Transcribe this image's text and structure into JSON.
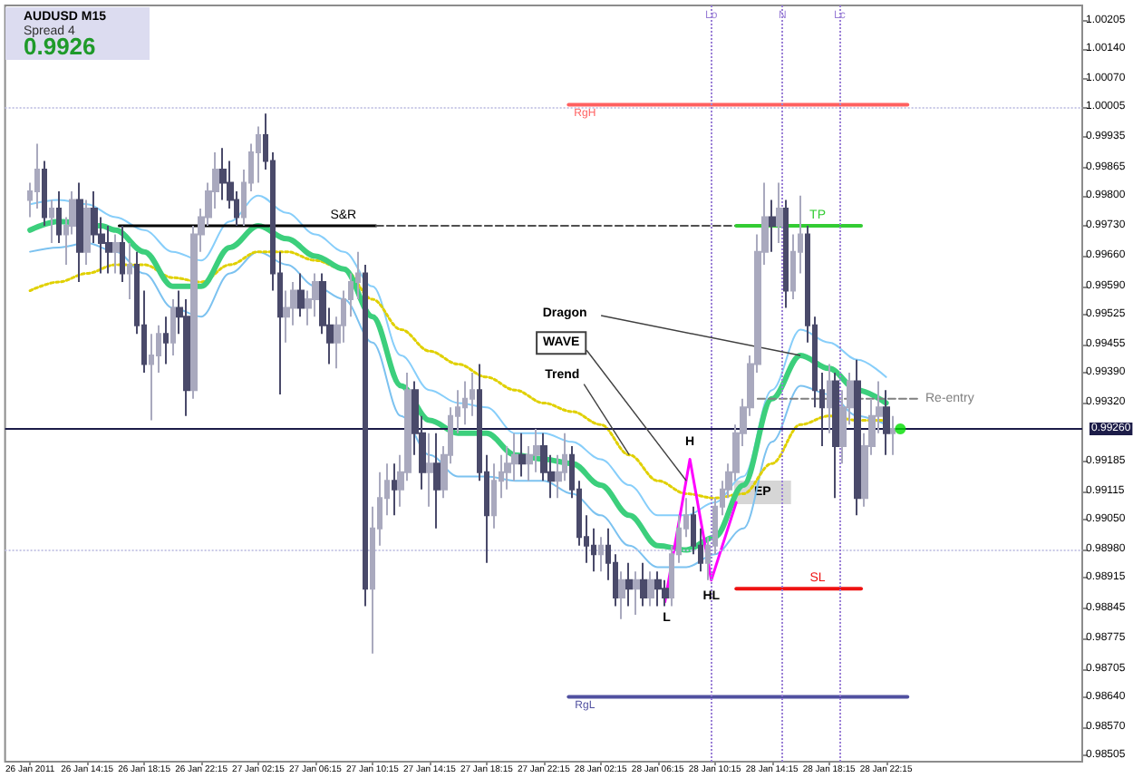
{
  "chart_data": {
    "type": "candlestick",
    "title": "AUDUSD M15",
    "subtitle": "Spread 4",
    "x": [
      "2011-01-26T10:15",
      "2011-01-26T10:45",
      "2011-01-26T11:15",
      "2011-01-26T11:45",
      "2011-01-26T12:15",
      "2011-01-26T12:45",
      "2011-01-26T13:15",
      "2011-01-26T13:45",
      "2011-01-26T14:15",
      "2011-01-26T14:45",
      "2011-01-26T15:15",
      "2011-01-26T15:45",
      "2011-01-26T16:15",
      "2011-01-26T16:45",
      "2011-01-26T17:15",
      "2011-01-26T17:45",
      "2011-01-26T18:15",
      "2011-01-26T18:45",
      "2011-01-26T19:15",
      "2011-01-26T19:45",
      "2011-01-26T20:15",
      "2011-01-26T20:45",
      "2011-01-26T21:15",
      "2011-01-26T21:45",
      "2011-01-26T22:15",
      "2011-01-26T22:45",
      "2011-01-26T23:15",
      "2011-01-26T23:45",
      "2011-01-27T00:15",
      "2011-01-27T00:45",
      "2011-01-27T01:15",
      "2011-01-27T01:45",
      "2011-01-27T02:15",
      "2011-01-27T02:45",
      "2011-01-27T03:15",
      "2011-01-27T03:45",
      "2011-01-27T04:15",
      "2011-01-27T04:45",
      "2011-01-27T05:15",
      "2011-01-27T05:45",
      "2011-01-27T06:15",
      "2011-01-27T06:45",
      "2011-01-27T07:15",
      "2011-01-27T07:45",
      "2011-01-27T08:15",
      "2011-01-27T08:45",
      "2011-01-27T09:15",
      "2011-01-27T09:45",
      "2011-01-27T10:15",
      "2011-01-27T10:45",
      "2011-01-27T11:15",
      "2011-01-27T11:45",
      "2011-01-27T12:15",
      "2011-01-27T12:45",
      "2011-01-27T13:15",
      "2011-01-27T13:45",
      "2011-01-27T14:15",
      "2011-01-27T14:45",
      "2011-01-27T15:15",
      "2011-01-27T15:45",
      "2011-01-27T16:15",
      "2011-01-27T16:45",
      "2011-01-27T17:15",
      "2011-01-27T17:45",
      "2011-01-27T18:15",
      "2011-01-27T18:45",
      "2011-01-27T19:15",
      "2011-01-27T19:45",
      "2011-01-27T20:15",
      "2011-01-27T20:45",
      "2011-01-27T21:15",
      "2011-01-27T21:45",
      "2011-01-27T22:15",
      "2011-01-27T22:45",
      "2011-01-27T23:15",
      "2011-01-27T23:45",
      "2011-01-28T00:15",
      "2011-01-28T00:45",
      "2011-01-28T01:15",
      "2011-01-28T01:45",
      "2011-01-28T02:15",
      "2011-01-28T02:45",
      "2011-01-28T03:15",
      "2011-01-28T03:45",
      "2011-01-28T04:15",
      "2011-01-28T04:45",
      "2011-01-28T05:15",
      "2011-01-28T05:45",
      "2011-01-28T06:15",
      "2011-01-28T06:45",
      "2011-01-28T07:15",
      "2011-01-28T07:45",
      "2011-01-28T08:15",
      "2011-01-28T08:45",
      "2011-01-28T09:15",
      "2011-01-28T09:45",
      "2011-01-28T10:15",
      "2011-01-28T10:45",
      "2011-01-28T11:15",
      "2011-01-28T11:45",
      "2011-01-28T12:15",
      "2011-01-28T12:45",
      "2011-01-28T13:15",
      "2011-01-28T13:45",
      "2011-01-28T14:15",
      "2011-01-28T14:45",
      "2011-01-28T15:15",
      "2011-01-28T15:45",
      "2011-01-28T16:15",
      "2011-01-28T16:45",
      "2011-01-28T17:15",
      "2011-01-28T17:45",
      "2011-01-28T18:15",
      "2011-01-28T18:45",
      "2011-01-28T19:15",
      "2011-01-28T19:45",
      "2011-01-28T20:15",
      "2011-01-28T20:45",
      "2011-01-28T21:15",
      "2011-01-28T21:45",
      "2011-01-28T22:15",
      "2011-01-28T22:45"
    ],
    "ohlc": [
      [
        0.9979,
        0.9983,
        0.9975,
        0.9981
      ],
      [
        0.9981,
        0.9992,
        0.9977,
        0.9986
      ],
      [
        0.9986,
        0.9988,
        0.9973,
        0.9975
      ],
      [
        0.9975,
        0.9979,
        0.9969,
        0.9977
      ],
      [
        0.9977,
        0.9981,
        0.9969,
        0.9971
      ],
      [
        0.9971,
        0.9975,
        0.9964,
        0.9973
      ],
      [
        0.9973,
        0.9981,
        0.9971,
        0.9979
      ],
      [
        0.9979,
        0.9983,
        0.996,
        0.9967
      ],
      [
        0.9967,
        0.9979,
        0.9964,
        0.9977
      ],
      [
        0.9977,
        0.9981,
        0.9969,
        0.9971
      ],
      [
        0.9971,
        0.9975,
        0.9962,
        0.9969
      ],
      [
        0.9969,
        0.9973,
        0.9962,
        0.9967
      ],
      [
        0.9967,
        0.9971,
        0.9962,
        0.9969
      ],
      [
        0.9969,
        0.9973,
        0.996,
        0.9962
      ],
      [
        0.9962,
        0.9969,
        0.9956,
        0.9964
      ],
      [
        0.9964,
        0.9967,
        0.9948,
        0.995
      ],
      [
        0.995,
        0.9958,
        0.9939,
        0.9941
      ],
      [
        0.9941,
        0.9948,
        0.9928,
        0.9943
      ],
      [
        0.9943,
        0.995,
        0.9939,
        0.9948
      ],
      [
        0.9948,
        0.9952,
        0.9941,
        0.9946
      ],
      [
        0.9946,
        0.9956,
        0.9943,
        0.9954
      ],
      [
        0.9954,
        0.9958,
        0.9948,
        0.9952
      ],
      [
        0.9952,
        0.9956,
        0.9929,
        0.9935
      ],
      [
        0.9935,
        0.9973,
        0.9933,
        0.9971
      ],
      [
        0.9971,
        0.9977,
        0.9967,
        0.9975
      ],
      [
        0.9975,
        0.9983,
        0.9973,
        0.9981
      ],
      [
        0.9981,
        0.999,
        0.9977,
        0.9986
      ],
      [
        0.9986,
        0.9991,
        0.9979,
        0.9983
      ],
      [
        0.9983,
        0.9988,
        0.9977,
        0.9979
      ],
      [
        0.9979,
        0.9981,
        0.9973,
        0.9975
      ],
      [
        0.9975,
        0.9986,
        0.9973,
        0.9983
      ],
      [
        0.9983,
        0.9992,
        0.9981,
        0.999
      ],
      [
        0.999,
        0.9996,
        0.9983,
        0.9994
      ],
      [
        0.9994,
        0.9999,
        0.9986,
        0.9988
      ],
      [
        0.9988,
        0.999,
        0.9958,
        0.9962
      ],
      [
        0.9962,
        0.9967,
        0.9934,
        0.9952
      ],
      [
        0.9952,
        0.9958,
        0.9946,
        0.9954
      ],
      [
        0.9954,
        0.996,
        0.995,
        0.9958
      ],
      [
        0.9958,
        0.9962,
        0.9952,
        0.9954
      ],
      [
        0.9954,
        0.9958,
        0.995,
        0.9956
      ],
      [
        0.9956,
        0.9962,
        0.9952,
        0.996
      ],
      [
        0.996,
        0.9962,
        0.9948,
        0.995
      ],
      [
        0.995,
        0.9954,
        0.9941,
        0.9946
      ],
      [
        0.9946,
        0.9952,
        0.994,
        0.995
      ],
      [
        0.995,
        0.9958,
        0.9946,
        0.9956
      ],
      [
        0.9956,
        0.9962,
        0.9952,
        0.996
      ],
      [
        0.996,
        0.9967,
        0.9956,
        0.9962
      ],
      [
        0.9962,
        0.9964,
        0.9885,
        0.9889
      ],
      [
        0.9889,
        0.9908,
        0.9874,
        0.9903
      ],
      [
        0.9903,
        0.9916,
        0.9899,
        0.991
      ],
      [
        0.991,
        0.9918,
        0.9906,
        0.9914
      ],
      [
        0.9914,
        0.9918,
        0.9906,
        0.9912
      ],
      [
        0.9912,
        0.992,
        0.9908,
        0.9916
      ],
      [
        0.9916,
        0.9939,
        0.9914,
        0.9935
      ],
      [
        0.9935,
        0.9937,
        0.992,
        0.9925
      ],
      [
        0.9925,
        0.9929,
        0.9912,
        0.9916
      ],
      [
        0.9916,
        0.9925,
        0.9908,
        0.9918
      ],
      [
        0.9918,
        0.9925,
        0.9903,
        0.9912
      ],
      [
        0.9912,
        0.9922,
        0.991,
        0.992
      ],
      [
        0.992,
        0.9931,
        0.9918,
        0.9929
      ],
      [
        0.9929,
        0.9935,
        0.9925,
        0.9931
      ],
      [
        0.9931,
        0.9937,
        0.9927,
        0.9933
      ],
      [
        0.9933,
        0.9939,
        0.9929,
        0.9935
      ],
      [
        0.9935,
        0.9941,
        0.9914,
        0.9916
      ],
      [
        0.9916,
        0.992,
        0.9895,
        0.9906
      ],
      [
        0.9906,
        0.9918,
        0.9903,
        0.9914
      ],
      [
        0.9914,
        0.992,
        0.991,
        0.9916
      ],
      [
        0.9916,
        0.9922,
        0.9912,
        0.9918
      ],
      [
        0.9918,
        0.9925,
        0.9914,
        0.992
      ],
      [
        0.992,
        0.9925,
        0.9915,
        0.9918
      ],
      [
        0.9918,
        0.9922,
        0.9914,
        0.992
      ],
      [
        0.992,
        0.9926,
        0.9916,
        0.9922
      ],
      [
        0.9922,
        0.9925,
        0.9914,
        0.9916
      ],
      [
        0.9916,
        0.992,
        0.991,
        0.9914
      ],
      [
        0.9914,
        0.992,
        0.991,
        0.9916
      ],
      [
        0.9916,
        0.9925,
        0.9914,
        0.992
      ],
      [
        0.992,
        0.9922,
        0.991,
        0.9912
      ],
      [
        0.9912,
        0.9914,
        0.9899,
        0.9901
      ],
      [
        0.9901,
        0.9906,
        0.9895,
        0.9899
      ],
      [
        0.9899,
        0.9903,
        0.9893,
        0.9897
      ],
      [
        0.9897,
        0.9901,
        0.9893,
        0.9899
      ],
      [
        0.9899,
        0.9903,
        0.9891,
        0.9895
      ],
      [
        0.9895,
        0.9897,
        0.9885,
        0.9887
      ],
      [
        0.9887,
        0.9893,
        0.9882,
        0.9891
      ],
      [
        0.9891,
        0.9895,
        0.9885,
        0.9889
      ],
      [
        0.9889,
        0.9893,
        0.9883,
        0.9891
      ],
      [
        0.9891,
        0.9895,
        0.9885,
        0.9887
      ],
      [
        0.9887,
        0.9893,
        0.9885,
        0.9891
      ],
      [
        0.9891,
        0.9893,
        0.9885,
        0.9889
      ],
      [
        0.9889,
        0.9891,
        0.9885,
        0.9887
      ],
      [
        0.9887,
        0.9899,
        0.9885,
        0.9897
      ],
      [
        0.9897,
        0.9906,
        0.9895,
        0.9903
      ],
      [
        0.9903,
        0.991,
        0.9901,
        0.9906
      ],
      [
        0.9906,
        0.9908,
        0.9897,
        0.9899
      ],
      [
        0.9899,
        0.9903,
        0.9893,
        0.9895
      ],
      [
        0.9895,
        0.9901,
        0.9891,
        0.9899
      ],
      [
        0.9899,
        0.991,
        0.9897,
        0.9908
      ],
      [
        0.9908,
        0.9914,
        0.9906,
        0.9912
      ],
      [
        0.9912,
        0.9918,
        0.991,
        0.9916
      ],
      [
        0.9916,
        0.9927,
        0.9914,
        0.9925
      ],
      [
        0.9925,
        0.9933,
        0.9922,
        0.9931
      ],
      [
        0.9931,
        0.9943,
        0.9929,
        0.9941
      ],
      [
        0.9941,
        0.9971,
        0.9939,
        0.9967
      ],
      [
        0.9967,
        0.9983,
        0.9964,
        0.9975
      ],
      [
        0.9975,
        0.9979,
        0.9967,
        0.9973
      ],
      [
        0.9973,
        0.9983,
        0.9969,
        0.9977
      ],
      [
        0.9977,
        0.9979,
        0.9954,
        0.9958
      ],
      [
        0.9958,
        0.9971,
        0.9956,
        0.9967
      ],
      [
        0.9967,
        0.998,
        0.9962,
        0.9971
      ],
      [
        0.9971,
        0.9973,
        0.9946,
        0.995
      ],
      [
        0.995,
        0.9952,
        0.9931,
        0.9935
      ],
      [
        0.9935,
        0.9939,
        0.9922,
        0.9931
      ],
      [
        0.9931,
        0.9941,
        0.9925,
        0.9937
      ],
      [
        0.9937,
        0.9939,
        0.991,
        0.9922
      ],
      [
        0.9922,
        0.9935,
        0.9918,
        0.9931
      ],
      [
        0.9931,
        0.9939,
        0.9927,
        0.9937
      ],
      [
        0.9937,
        0.9942,
        0.9906,
        0.991
      ],
      [
        0.991,
        0.9925,
        0.9908,
        0.9922
      ],
      [
        0.9922,
        0.9933,
        0.992,
        0.9929
      ],
      [
        0.9929,
        0.9937,
        0.9925,
        0.9931
      ],
      [
        0.9931,
        0.9935,
        0.992,
        0.9925
      ],
      [
        0.9925,
        0.9929,
        0.992,
        0.9926
      ]
    ],
    "colors": [
      "#a9a9be",
      "#a9a9be",
      "#4a4a6a",
      "#a9a9be",
      "#4a4a6a",
      "#a9a9be",
      "#a9a9be",
      "#4a4a6a",
      "#a9a9be",
      "#4a4a6a",
      "#4a4a6a",
      "#4a4a6a",
      "#a9a9be",
      "#4a4a6a",
      "#a9a9be",
      "#4a4a6a",
      "#4a4a6a",
      "#a9a9be",
      "#a9a9be",
      "#4a4a6a",
      "#a9a9be",
      "#4a4a6a",
      "#4a4a6a",
      "#a9a9be",
      "#a9a9be",
      "#a9a9be",
      "#a9a9be",
      "#4a4a6a",
      "#4a4a6a",
      "#4a4a6a",
      "#a9a9be",
      "#a9a9be",
      "#a9a9be",
      "#4a4a6a",
      "#4a4a6a",
      "#4a4a6a",
      "#a9a9be",
      "#a9a9be",
      "#4a4a6a",
      "#a9a9be",
      "#a9a9be",
      "#4a4a6a",
      "#4a4a6a",
      "#a9a9be",
      "#a9a9be",
      "#a9a9be",
      "#a9a9be",
      "#4a4a6a",
      "#a9a9be",
      "#a9a9be",
      "#a9a9be",
      "#4a4a6a",
      "#a9a9be",
      "#a9a9be",
      "#4a4a6a",
      "#4a4a6a",
      "#a9a9be",
      "#4a4a6a",
      "#a9a9be",
      "#a9a9be",
      "#a9a9be",
      "#a9a9be",
      "#a9a9be",
      "#4a4a6a",
      "#4a4a6a",
      "#a9a9be",
      "#a9a9be",
      "#a9a9be",
      "#a9a9be",
      "#4a4a6a",
      "#a9a9be",
      "#a9a9be",
      "#4a4a6a",
      "#4a4a6a",
      "#a9a9be",
      "#a9a9be",
      "#4a4a6a",
      "#4a4a6a",
      "#4a4a6a",
      "#4a4a6a",
      "#a9a9be",
      "#4a4a6a",
      "#4a4a6a",
      "#a9a9be",
      "#4a4a6a",
      "#a9a9be",
      "#4a4a6a",
      "#a9a9be",
      "#4a4a6a",
      "#4a4a6a",
      "#a9a9be",
      "#a9a9be",
      "#a9a9be",
      "#4a4a6a",
      "#4a4a6a",
      "#a9a9be",
      "#a9a9be",
      "#a9a9be",
      "#a9a9be",
      "#a9a9be",
      "#a9a9be",
      "#a9a9be",
      "#a9a9be",
      "#a9a9be",
      "#4a4a6a",
      "#a9a9be",
      "#4a4a6a",
      "#a9a9be",
      "#a9a9be",
      "#4a4a6a",
      "#4a4a6a",
      "#4a4a6a",
      "#a9a9be",
      "#4a4a6a",
      "#a9a9be",
      "#a9a9be",
      "#4a4a6a",
      "#a9a9be",
      "#a9a9be",
      "#a9a9be",
      "#4a4a6a",
      "#a9a9be"
    ],
    "series": [
      {
        "type": "line",
        "color": "#87cefa",
        "x": [
          "2011-01-26T10:15",
          "2011-01-26T12:15",
          "2011-01-26T14:15",
          "2011-01-26T16:15",
          "2011-01-26T18:15",
          "2011-01-26T20:15",
          "2011-01-26T22:15",
          "2011-01-27T00:15",
          "2011-01-27T02:15",
          "2011-01-27T04:15",
          "2011-01-27T06:15",
          "2011-01-27T08:15",
          "2011-01-27T10:15",
          "2011-01-27T12:15",
          "2011-01-27T14:15",
          "2011-01-27T16:15",
          "2011-01-27T18:15",
          "2011-01-27T20:15",
          "2011-01-27T22:15",
          "2011-01-28T00:15",
          "2011-01-28T02:15",
          "2011-01-28T04:15",
          "2011-01-28T06:15",
          "2011-01-28T08:15",
          "2011-01-28T10:15",
          "2011-01-28T12:15",
          "2011-01-28T14:15",
          "2011-01-28T16:15",
          "2011-01-28T18:15",
          "2011-01-28T20:15",
          "2011-01-28T22:15"
        ],
        "values": [
          0.9978,
          0.9979,
          0.9978,
          0.9975,
          0.9972,
          0.9967,
          0.9965,
          0.9974,
          0.998,
          0.9976,
          0.9971,
          0.9967,
          0.9959,
          0.9943,
          0.9935,
          0.9932,
          0.9931,
          0.9925,
          0.9925,
          0.9923,
          0.9919,
          0.9913,
          0.9906,
          0.9906,
          0.9909,
          0.9915,
          0.9935,
          0.9949,
          0.9946,
          0.9942,
          0.9938
        ]
      },
      {
        "type": "line",
        "color": "#7cc2f0",
        "x": [
          "2011-01-26T10:15",
          "2011-01-26T12:15",
          "2011-01-26T14:15",
          "2011-01-26T16:15",
          "2011-01-26T18:15",
          "2011-01-26T20:15",
          "2011-01-26T22:15",
          "2011-01-27T00:15",
          "2011-01-27T02:15",
          "2011-01-27T04:15",
          "2011-01-27T06:15",
          "2011-01-27T08:15",
          "2011-01-27T10:15",
          "2011-01-27T12:15",
          "2011-01-27T14:15",
          "2011-01-27T16:15",
          "2011-01-27T18:15",
          "2011-01-27T20:15",
          "2011-01-27T22:15",
          "2011-01-28T00:15",
          "2011-01-28T02:15",
          "2011-01-28T04:15",
          "2011-01-28T06:15",
          "2011-01-28T08:15",
          "2011-01-28T10:15",
          "2011-01-28T12:15",
          "2011-01-28T14:15",
          "2011-01-28T16:15",
          "2011-01-28T18:15",
          "2011-01-28T20:15",
          "2011-01-28T22:15"
        ],
        "values": [
          0.9967,
          0.9968,
          0.9969,
          0.9967,
          0.9962,
          0.9954,
          0.9952,
          0.9962,
          0.9967,
          0.9964,
          0.9959,
          0.9956,
          0.9946,
          0.9929,
          0.992,
          0.9915,
          0.9915,
          0.9914,
          0.9914,
          0.9911,
          0.9906,
          0.9899,
          0.9894,
          0.9894,
          0.9897,
          0.9903,
          0.9923,
          0.9936,
          0.9934,
          0.9929,
          0.9927
        ]
      },
      {
        "type": "line",
        "color": "#e0d000",
        "line_style": "dotted",
        "x": [
          "2011-01-26T10:15",
          "2011-01-26T12:15",
          "2011-01-26T14:15",
          "2011-01-26T16:15",
          "2011-01-26T18:15",
          "2011-01-26T20:15",
          "2011-01-26T22:15",
          "2011-01-27T00:15",
          "2011-01-27T02:15",
          "2011-01-27T04:15",
          "2011-01-27T06:15",
          "2011-01-27T08:15",
          "2011-01-27T10:15",
          "2011-01-27T12:15",
          "2011-01-27T14:15",
          "2011-01-27T16:15",
          "2011-01-27T18:15",
          "2011-01-27T20:15",
          "2011-01-27T22:15",
          "2011-01-28T00:15",
          "2011-01-28T02:15",
          "2011-01-28T04:15",
          "2011-01-28T06:15",
          "2011-01-28T08:15",
          "2011-01-28T10:15",
          "2011-01-28T12:15",
          "2011-01-28T14:15",
          "2011-01-28T16:15",
          "2011-01-28T18:15",
          "2011-01-28T20:15",
          "2011-01-28T22:15"
        ],
        "values": [
          0.9958,
          0.996,
          0.9962,
          0.9964,
          0.9964,
          0.9961,
          0.996,
          0.9964,
          0.9967,
          0.9967,
          0.9965,
          0.9963,
          0.9956,
          0.9949,
          0.9944,
          0.9941,
          0.9938,
          0.9935,
          0.9932,
          0.993,
          0.9927,
          0.992,
          0.9914,
          0.9911,
          0.991,
          0.9911,
          0.9918,
          0.9927,
          0.9929,
          0.9928,
          0.9928
        ]
      },
      {
        "type": "line",
        "color": "#3ccf7c",
        "x": [
          "2011-01-26T10:15",
          "2011-01-26T12:15",
          "2011-01-26T15:15",
          "2011-01-26T16:15",
          "2011-01-26T18:15",
          "2011-01-26T20:15",
          "2011-01-26T22:15",
          "2011-01-27T00:15",
          "2011-01-27T02:15",
          "2011-01-27T04:15",
          "2011-01-27T06:15",
          "2011-01-27T08:15",
          "2011-01-27T10:15",
          "2011-01-27T12:15",
          "2011-01-27T14:15",
          "2011-01-27T16:15",
          "2011-01-27T18:15",
          "2011-01-27T20:15",
          "2011-01-27T22:15",
          "2011-01-28T00:15",
          "2011-01-28T02:15",
          "2011-01-28T04:15",
          "2011-01-28T06:15",
          "2011-01-28T08:15",
          "2011-01-28T10:15",
          "2011-01-28T12:15",
          "2011-01-28T14:15",
          "2011-01-28T16:15",
          "2011-01-28T18:15",
          "2011-01-28T20:15",
          "2011-01-28T22:15"
        ],
        "values": [
          0.9972,
          0.9974,
          0.9973,
          0.9972,
          0.9967,
          0.9959,
          0.9959,
          0.9968,
          0.9973,
          0.997,
          0.9966,
          0.9963,
          0.9952,
          0.9936,
          0.9928,
          0.9925,
          0.9925,
          0.992,
          0.9919,
          0.9918,
          0.9913,
          0.9906,
          0.9899,
          0.9898,
          0.9901,
          0.9913,
          0.9933,
          0.9943,
          0.994,
          0.9935,
          0.9932
        ]
      },
      {
        "type": "line",
        "name": "S&R",
        "color": "#000000",
        "x": [
          "2011-01-26T16:30",
          "2011-01-27T10:30"
        ],
        "values": [
          0.9973,
          0.9973
        ]
      },
      {
        "type": "line",
        "color": "#505050",
        "line_style": "dashed",
        "x": [
          "2011-01-27T10:30",
          "2011-01-28T11:45"
        ],
        "values": [
          0.9973,
          0.9973
        ]
      },
      {
        "type": "line",
        "name": "TP",
        "color": "#33cc33",
        "x": [
          "2011-01-28T11:45",
          "2011-01-28T20:30"
        ],
        "values": [
          0.9973,
          0.9973
        ]
      },
      {
        "type": "line",
        "name": "SL",
        "color": "#ee1111",
        "x": [
          "2011-01-28T11:45",
          "2011-01-28T20:30"
        ],
        "values": [
          0.9889,
          0.9889
        ]
      },
      {
        "type": "line",
        "name": "RgH",
        "color": "#ff6060",
        "x": [
          "2011-01-28T00:00",
          "2011-01-28T23:45"
        ],
        "values": [
          1.0001,
          1.0001
        ]
      },
      {
        "type": "line",
        "name": "RgL",
        "color": "#5050a0",
        "x": [
          "2011-01-28T00:00",
          "2011-01-28T23:45"
        ],
        "values": [
          0.9864,
          0.9864
        ]
      },
      {
        "type": "line",
        "name": "Re-entry",
        "color": "#808080",
        "line_style": "dashed",
        "x": [
          "2011-01-28T13:15",
          "2011-01-29T00:30"
        ],
        "values": [
          0.9933,
          0.9933
        ]
      },
      {
        "type": "line",
        "color": "#ff00ff",
        "x": [
          "2011-01-28T06:45",
          "2011-01-28T08:30",
          "2011-01-28T10:00",
          "2011-01-28T11:45"
        ],
        "values": [
          0.9886,
          0.9919,
          0.9891,
          0.9909
        ]
      },
      {
        "type": "scatter",
        "color": "#00dd00",
        "marker": "circle",
        "x": [
          "2011-01-28T23:15"
        ],
        "values": [
          0.9926
        ]
      }
    ],
    "xlim": [
      "2011-01-26T08:30",
      "2011-01-29T12:00"
    ],
    "xticks": [
      {
        "value": "2011-01-26T10:15",
        "label": "26 Jan 2011"
      },
      {
        "value": "2011-01-26T14:15",
        "label": "26 Jan 14:15"
      },
      {
        "value": "2011-01-26T18:15",
        "label": "26 Jan 18:15"
      },
      {
        "value": "2011-01-26T22:15",
        "label": "26 Jan 22:15"
      },
      {
        "value": "2011-01-27T02:15",
        "label": "27 Jan 02:15"
      },
      {
        "value": "2011-01-27T06:15",
        "label": "27 Jan 06:15"
      },
      {
        "value": "2011-01-27T10:15",
        "label": "27 Jan 10:15"
      },
      {
        "value": "2011-01-27T14:15",
        "label": "27 Jan 14:15"
      },
      {
        "value": "2011-01-27T18:15",
        "label": "27 Jan 18:15"
      },
      {
        "value": "2011-01-27T22:15",
        "label": "27 Jan 22:15"
      },
      {
        "value": "2011-01-28T02:15",
        "label": "28 Jan 02:15"
      },
      {
        "value": "2011-01-28T06:15",
        "label": "28 Jan 06:15"
      },
      {
        "value": "2011-01-28T10:15",
        "label": "28 Jan 10:15"
      },
      {
        "value": "2011-01-28T14:15",
        "label": "28 Jan 14:15"
      },
      {
        "value": "2011-01-28T18:15",
        "label": "28 Jan 18:15"
      },
      {
        "value": "2011-01-28T22:15",
        "label": "28 Jan 22:15"
      }
    ],
    "ylim": [
      0.9849,
      1.0024
    ],
    "yticks": [
      1.00205,
      {
        "value": 1.0014,
        "label": "1.00140"
      },
      {
        "value": 1.0007,
        "label": "1.00070"
      },
      1.00005,
      0.99935,
      0.99865,
      {
        "value": 0.998,
        "label": "0.99800"
      },
      {
        "value": 0.9973,
        "label": "0.99730"
      },
      {
        "value": 0.9966,
        "label": "0.99660"
      },
      {
        "value": 0.9959,
        "label": "0.99590"
      },
      0.99525,
      0.99455,
      {
        "value": 0.9939,
        "label": "0.99390"
      },
      {
        "value": 0.9932,
        "label": "0.99320"
      },
      0.99185,
      0.99115,
      {
        "value": 0.9905,
        "label": "0.99050"
      },
      {
        "value": 0.9898,
        "label": "0.98980"
      },
      0.98915,
      0.98845,
      0.98775,
      0.98705,
      {
        "value": 0.9864,
        "label": "0.98640"
      },
      {
        "value": 0.9857,
        "label": "0.98570"
      },
      0.98505
    ],
    "ref_lines": [
      {
        "axis": "y",
        "value": 1.00005,
        "color": "#c8c8e6",
        "line_style": "dotted"
      },
      {
        "axis": "y",
        "value": 0.9898,
        "color": "#c8c8e6",
        "line_style": "dotted"
      },
      {
        "axis": "y",
        "value": 0.9926,
        "label": "0.99260",
        "color": "#1c1c48"
      },
      {
        "axis": "x",
        "value": "2011-01-28T10:00",
        "label": "Lo",
        "color": "#9a7fd6",
        "line_style": "dotted"
      },
      {
        "axis": "x",
        "value": "2011-01-28T15:00",
        "label": "N",
        "color": "#9a7fd6",
        "line_style": "dotted"
      },
      {
        "axis": "x",
        "value": "2011-01-28T19:00",
        "label": "Lc",
        "color": "#9a7fd6",
        "line_style": "dotted"
      }
    ],
    "annotations": [
      {
        "text": "Dragon",
        "x": "2011-01-28T16:15",
        "y": 0.9943
      },
      {
        "text": "WAVE",
        "x": "2011-01-28T08:15",
        "y": 0.9914
      },
      {
        "text": "Trend",
        "x": "2011-01-28T04:15",
        "y": 0.992
      },
      {
        "text": "L",
        "x": "2011-01-28T06:45",
        "y": 0.9886
      },
      {
        "text": "H",
        "x": "2011-01-28T08:30",
        "y": 0.9919
      },
      {
        "text": "HL",
        "x": "2011-01-28T10:00",
        "y": 0.9891
      },
      "EP",
      "0.9926"
    ]
  }
}
